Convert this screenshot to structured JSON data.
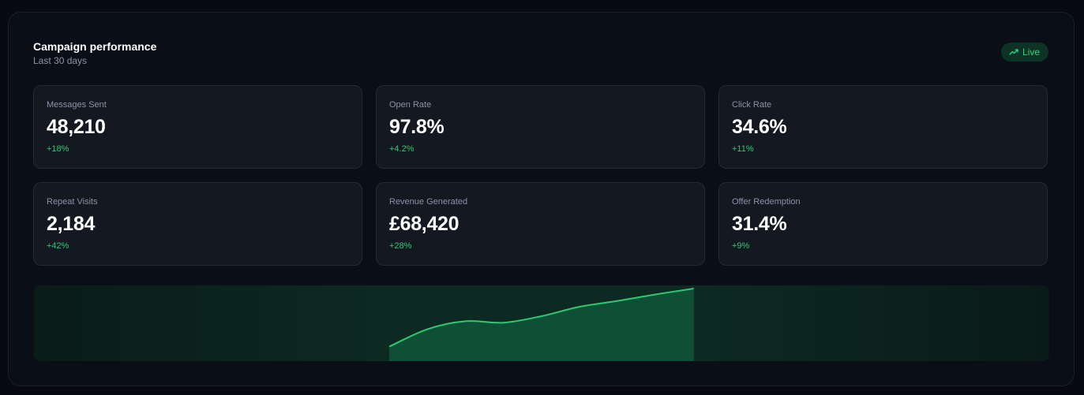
{
  "header": {
    "title": "Campaign performance",
    "subtitle": "Last 30 days",
    "badge": {
      "label": "Live",
      "icon": "trending-up-icon"
    }
  },
  "metrics": [
    {
      "label": "Messages Sent",
      "value": "48,210",
      "delta": "+18%"
    },
    {
      "label": "Open Rate",
      "value": "97.8%",
      "delta": "+4.2%"
    },
    {
      "label": "Click Rate",
      "value": "34.6%",
      "delta": "+11%"
    },
    {
      "label": "Repeat Visits",
      "value": "2,184",
      "delta": "+42%"
    },
    {
      "label": "Revenue Generated",
      "value": "£68,420",
      "delta": "+28%"
    },
    {
      "label": "Offer Redemption",
      "value": "31.4%",
      "delta": "+9%"
    }
  ],
  "colors": {
    "accent": "#2ec973",
    "badge_bg": "#0d3326",
    "card_bg": "#131821",
    "panel_bg": "#0a0e17"
  },
  "chart_data": {
    "type": "area",
    "y": [
      0.2,
      0.44,
      0.55,
      0.53,
      0.62,
      0.75,
      0.83,
      0.92,
      1.0
    ],
    "ylim": [
      0,
      1
    ],
    "visible_range": [
      0.35,
      0.65
    ],
    "grid": false
  }
}
